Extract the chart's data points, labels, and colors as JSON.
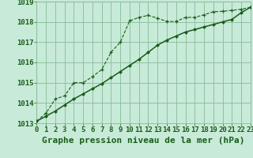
{
  "bg_color": "#c8ead8",
  "grid_color": "#88bb99",
  "line_color": "#1a5c1a",
  "xlabel": "Graphe pression niveau de la mer (hPa)",
  "ylim": [
    1013,
    1019
  ],
  "xlim": [
    0,
    23
  ],
  "yticks": [
    1013,
    1014,
    1015,
    1016,
    1017,
    1018,
    1019
  ],
  "xticks": [
    0,
    1,
    2,
    3,
    4,
    5,
    6,
    7,
    8,
    9,
    10,
    11,
    12,
    13,
    14,
    15,
    16,
    17,
    18,
    19,
    20,
    21,
    22,
    23
  ],
  "series1_x": [
    0,
    1,
    2,
    3,
    4,
    5,
    6,
    7,
    8,
    9,
    10,
    11,
    12,
    13,
    14,
    15,
    16,
    17,
    18,
    19,
    20,
    21,
    22,
    23
  ],
  "series1_y": [
    1013.1,
    1013.5,
    1014.2,
    1014.35,
    1015.0,
    1015.0,
    1015.3,
    1015.65,
    1016.5,
    1017.0,
    1018.05,
    1018.22,
    1018.32,
    1018.18,
    1018.02,
    1018.02,
    1018.22,
    1018.22,
    1018.35,
    1018.5,
    1018.52,
    1018.57,
    1018.62,
    1018.72
  ],
  "series2_x": [
    0,
    1,
    2,
    3,
    4,
    5,
    6,
    7,
    8,
    9,
    10,
    11,
    12,
    13,
    14,
    15,
    16,
    17,
    18,
    19,
    20,
    21,
    22,
    23
  ],
  "series2_y": [
    1013.1,
    1013.35,
    1013.6,
    1013.9,
    1014.2,
    1014.45,
    1014.7,
    1014.95,
    1015.25,
    1015.55,
    1015.85,
    1016.15,
    1016.5,
    1016.85,
    1017.1,
    1017.3,
    1017.5,
    1017.62,
    1017.75,
    1017.87,
    1018.0,
    1018.12,
    1018.45,
    1018.72
  ],
  "xlabel_fontsize": 8,
  "tick_fontsize": 6.5
}
